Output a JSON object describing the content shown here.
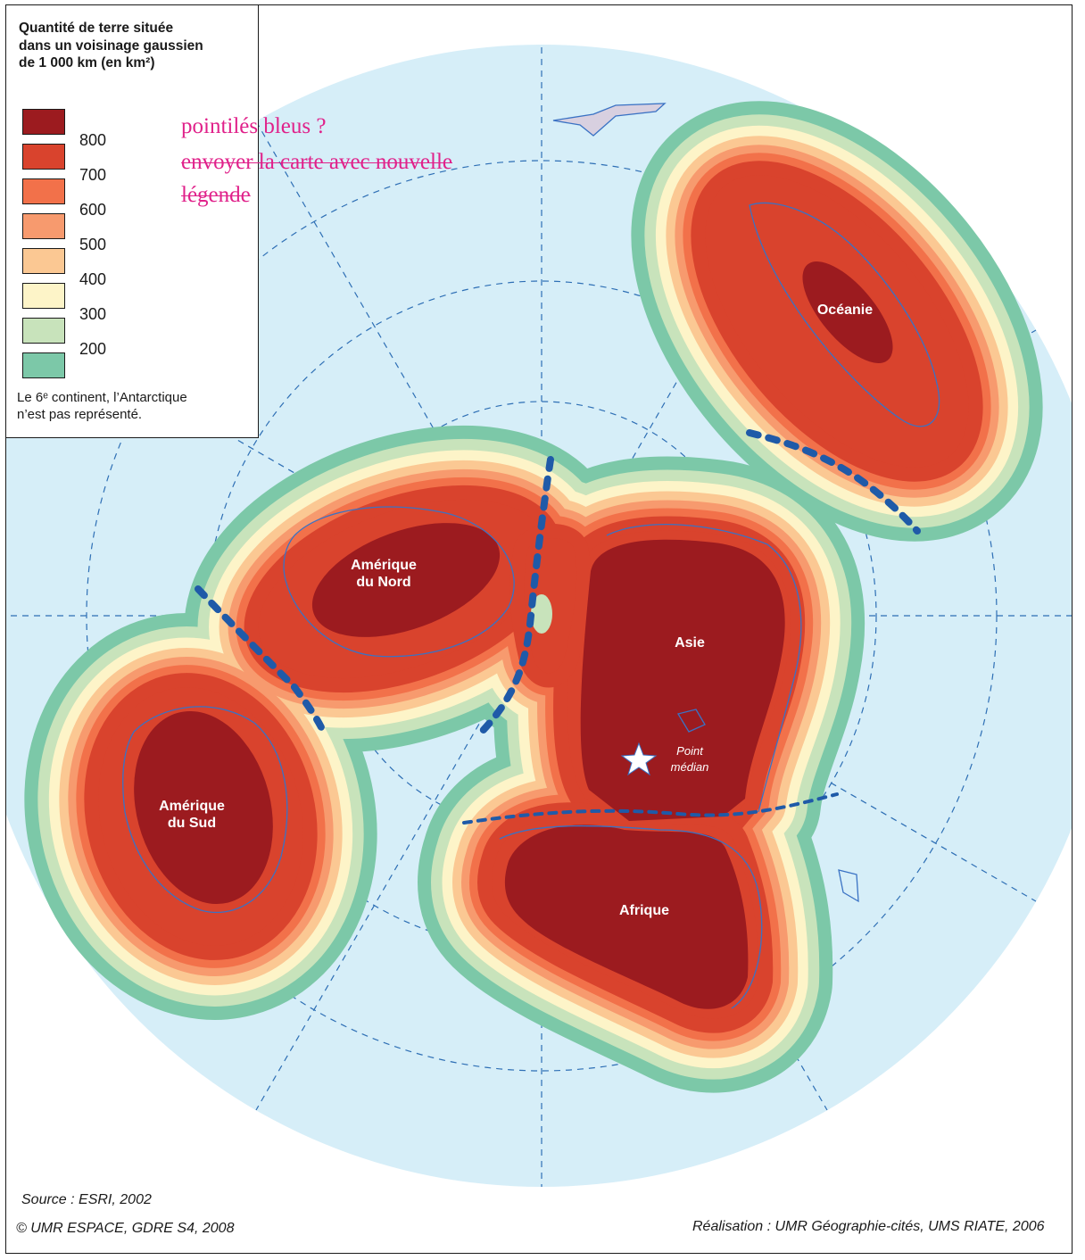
{
  "legend": {
    "title_line1": "Quantité de terre située",
    "title_line2": "dans un voisinage gaussien",
    "title_line3": "de 1 000 km (en km²)",
    "classes": [
      {
        "color": "#9c1b1f"
      },
      {
        "color": "#d9432d"
      },
      {
        "color": "#f2714a"
      },
      {
        "color": "#f79a6e"
      },
      {
        "color": "#fbc893"
      },
      {
        "color": "#fdf4c8"
      },
      {
        "color": "#c8e3bb"
      },
      {
        "color": "#7cc8a8"
      }
    ],
    "values": [
      "800",
      "700",
      "600",
      "500",
      "400",
      "300",
      "200"
    ],
    "note_line1": "Le 6ᵉ continent, l’Antarctique",
    "note_line2": "n’est pas représenté."
  },
  "annotations": {
    "line1": "pointilés bleus ?",
    "line2": "envoyer la carte avec nouvelle",
    "line3": "légende"
  },
  "labels": {
    "oceanie": "Océanie",
    "amerique_nord_1": "Amérique",
    "amerique_nord_2": "du Nord",
    "amerique_sud_1": "Amérique",
    "amerique_sud_2": "du Sud",
    "asie": "Asie",
    "afrique": "Afrique",
    "point_1": "Point",
    "point_2": "médian"
  },
  "footer": {
    "source": "Source : ESRI, 2002",
    "copyright": "© UMR ESPACE, GDRE S4, 2008",
    "realisation": "Réalisation : UMR Géographie-cités, UMS RIATE, 2006"
  },
  "colors": {
    "ocean": "#d6eef8",
    "graticule": "#2e6fb5",
    "boundary": "#1f5aa8",
    "coast": "#3a72c4"
  }
}
